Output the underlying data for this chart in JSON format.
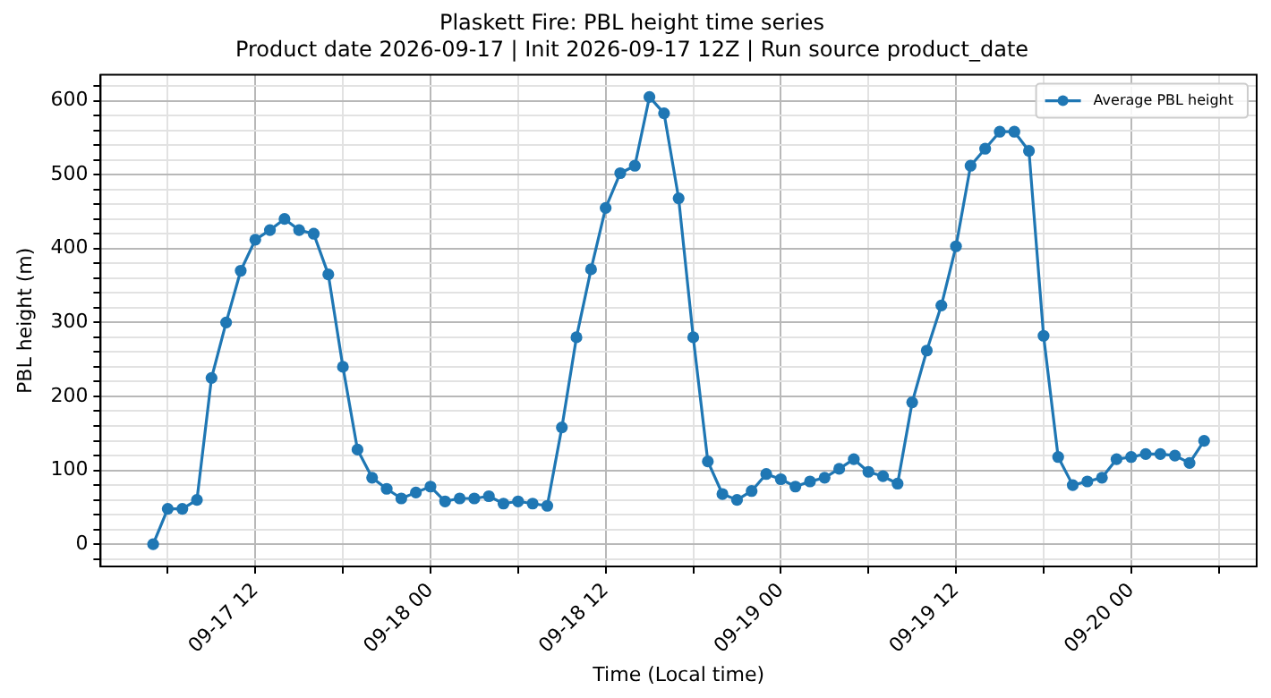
{
  "chart_data": {
    "type": "line",
    "title": "Plaskett Fire: PBL height time series",
    "subtitle": "Product date 2026-09-17 | Init 2026-09-17 12Z | Run source product_date",
    "xlabel": "Time (Local time)",
    "ylabel": "PBL height (m)",
    "x": [
      "2026-09-17T05:00",
      "2026-09-17T06:00",
      "2026-09-17T07:00",
      "2026-09-17T08:00",
      "2026-09-17T09:00",
      "2026-09-17T10:00",
      "2026-09-17T11:00",
      "2026-09-17T12:00",
      "2026-09-17T13:00",
      "2026-09-17T14:00",
      "2026-09-17T15:00",
      "2026-09-17T16:00",
      "2026-09-17T17:00",
      "2026-09-17T18:00",
      "2026-09-17T19:00",
      "2026-09-17T20:00",
      "2026-09-17T21:00",
      "2026-09-17T22:00",
      "2026-09-17T23:00",
      "2026-09-18T00:00",
      "2026-09-18T01:00",
      "2026-09-18T02:00",
      "2026-09-18T03:00",
      "2026-09-18T04:00",
      "2026-09-18T05:00",
      "2026-09-18T06:00",
      "2026-09-18T07:00",
      "2026-09-18T08:00",
      "2026-09-18T09:00",
      "2026-09-18T10:00",
      "2026-09-18T11:00",
      "2026-09-18T12:00",
      "2026-09-18T13:00",
      "2026-09-18T14:00",
      "2026-09-18T15:00",
      "2026-09-18T16:00",
      "2026-09-18T17:00",
      "2026-09-18T18:00",
      "2026-09-18T19:00",
      "2026-09-18T20:00",
      "2026-09-18T21:00",
      "2026-09-18T22:00",
      "2026-09-18T23:00",
      "2026-09-19T00:00",
      "2026-09-19T01:00",
      "2026-09-19T02:00",
      "2026-09-19T03:00",
      "2026-09-19T04:00",
      "2026-09-19T05:00",
      "2026-09-19T06:00",
      "2026-09-19T07:00",
      "2026-09-19T08:00",
      "2026-09-19T09:00",
      "2026-09-19T10:00",
      "2026-09-19T11:00",
      "2026-09-19T12:00",
      "2026-09-19T13:00",
      "2026-09-19T14:00",
      "2026-09-19T15:00",
      "2026-09-19T16:00",
      "2026-09-19T17:00",
      "2026-09-19T18:00",
      "2026-09-19T19:00",
      "2026-09-19T20:00",
      "2026-09-19T21:00",
      "2026-09-19T22:00",
      "2026-09-19T23:00",
      "2026-09-20T00:00",
      "2026-09-20T01:00",
      "2026-09-20T02:00",
      "2026-09-20T03:00",
      "2026-09-20T04:00",
      "2026-09-20T05:00"
    ],
    "series": [
      {
        "name": "Average PBL height",
        "color": "#1f77b4",
        "values": [
          0,
          48,
          48,
          60,
          225,
          300,
          370,
          412,
          425,
          440,
          425,
          420,
          365,
          240,
          128,
          90,
          75,
          62,
          70,
          78,
          58,
          62,
          62,
          65,
          55,
          58,
          55,
          52,
          158,
          280,
          372,
          455,
          502,
          512,
          605,
          583,
          468,
          280,
          112,
          68,
          60,
          72,
          95,
          88,
          78,
          85,
          90,
          102,
          115,
          98,
          92,
          82,
          192,
          262,
          323,
          403,
          512,
          535,
          558,
          558,
          532,
          282,
          118,
          80,
          85,
          90,
          115,
          118,
          122,
          122,
          120,
          110,
          140
        ]
      }
    ],
    "xlim": [
      "2026-09-17T01:24",
      "2026-09-20T08:36"
    ],
    "xticks": [
      {
        "value": "2026-09-17T06:00",
        "label": null
      },
      {
        "value": "2026-09-17T12:00",
        "label": "09-17 12"
      },
      {
        "value": "2026-09-17T18:00",
        "label": null
      },
      {
        "value": "2026-09-18T00:00",
        "label": "09-18 00"
      },
      {
        "value": "2026-09-18T06:00",
        "label": null
      },
      {
        "value": "2026-09-18T12:00",
        "label": "09-18 12"
      },
      {
        "value": "2026-09-18T18:00",
        "label": null
      },
      {
        "value": "2026-09-19T00:00",
        "label": "09-19 00"
      },
      {
        "value": "2026-09-19T06:00",
        "label": null
      },
      {
        "value": "2026-09-19T12:00",
        "label": "09-19 12"
      },
      {
        "value": "2026-09-19T18:00",
        "label": null
      },
      {
        "value": "2026-09-20T00:00",
        "label": "09-20 00"
      },
      {
        "value": "2026-09-20T06:00",
        "label": null
      }
    ],
    "ylim": [
      -30,
      635
    ],
    "yticks": [
      {
        "value": -20,
        "label": null
      },
      0,
      {
        "value": 20,
        "label": null
      },
      {
        "value": 40,
        "label": null
      },
      {
        "value": 60,
        "label": null
      },
      {
        "value": 80,
        "label": null
      },
      100,
      {
        "value": 120,
        "label": null
      },
      {
        "value": 140,
        "label": null
      },
      {
        "value": 160,
        "label": null
      },
      {
        "value": 180,
        "label": null
      },
      200,
      {
        "value": 220,
        "label": null
      },
      {
        "value": 240,
        "label": null
      },
      {
        "value": 260,
        "label": null
      },
      {
        "value": 280,
        "label": null
      },
      300,
      {
        "value": 320,
        "label": null
      },
      {
        "value": 340,
        "label": null
      },
      {
        "value": 360,
        "label": null
      },
      {
        "value": 380,
        "label": null
      },
      400,
      {
        "value": 420,
        "label": null
      },
      {
        "value": 440,
        "label": null
      },
      {
        "value": 460,
        "label": null
      },
      {
        "value": 480,
        "label": null
      },
      500,
      {
        "value": 520,
        "label": null
      },
      {
        "value": 540,
        "label": null
      },
      {
        "value": 560,
        "label": null
      },
      {
        "value": 580,
        "label": null
      },
      600,
      {
        "value": 620,
        "label": null
      }
    ],
    "grid": true,
    "legend": "top right",
    "marker": "circle",
    "line_style": "solid"
  }
}
